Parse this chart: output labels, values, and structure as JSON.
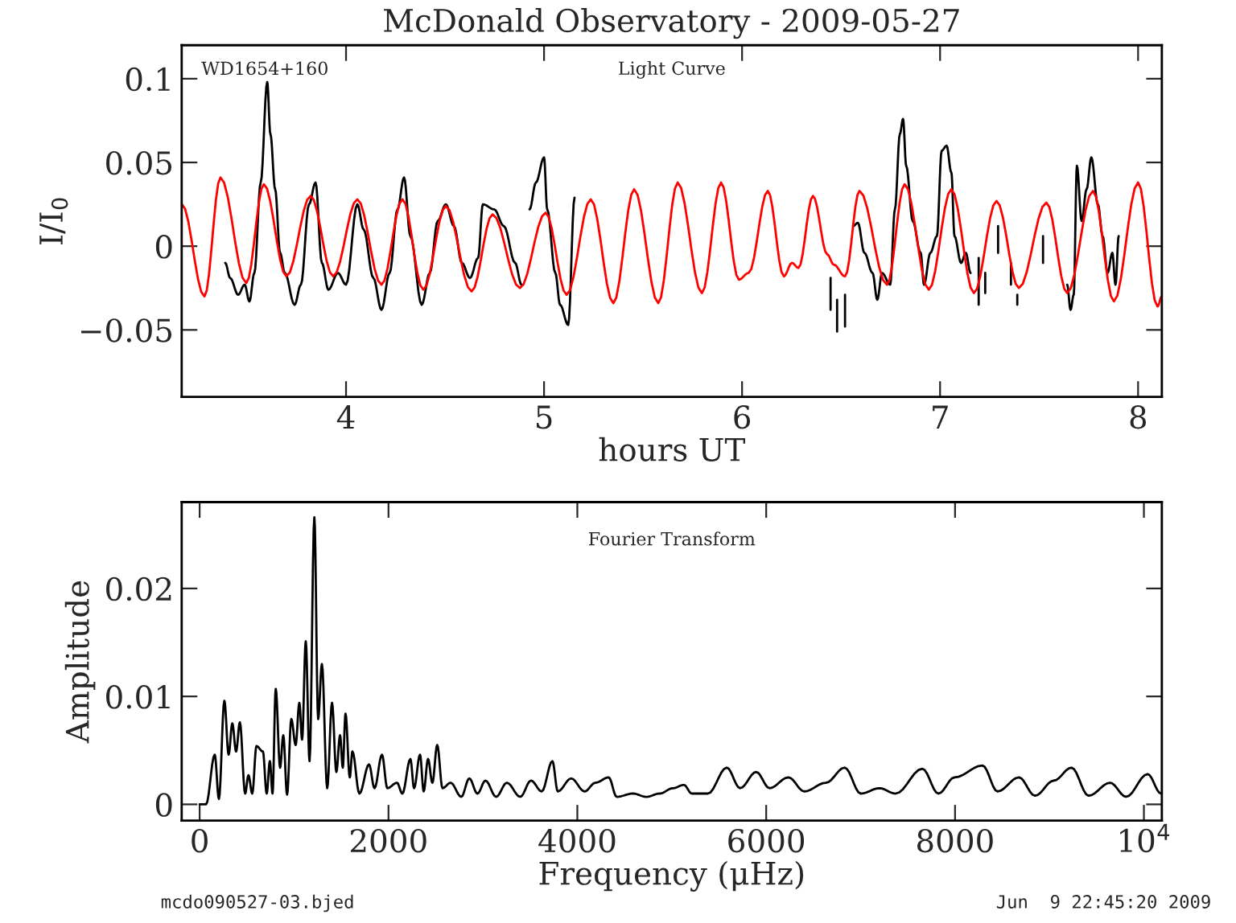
{
  "chart_data": [
    {
      "type": "line",
      "title": "McDonald Observatory - 2009-05-27",
      "xlabel": "hours UT",
      "ylabel": "I/I$_{0}$",
      "annotations": [
        "WD1654+160",
        "Light Curve"
      ],
      "xlim": [
        3.17,
        8.12
      ],
      "ylim": [
        -0.09,
        0.12
      ],
      "xticks": [
        4,
        5,
        6,
        7,
        8
      ],
      "yticks": [
        {
          "value": -0.05,
          "label": "−0.05"
        },
        0,
        0.05,
        0.1
      ],
      "grid": false,
      "legend": false,
      "marker": "none",
      "line_style": "solid",
      "series": [
        {
          "color": "#000000",
          "x": [
            3.39,
            3.415,
            3.455,
            3.488,
            3.512,
            3.537,
            3.569,
            3.602,
            3.618,
            3.642,
            3.667,
            3.691,
            3.74,
            3.772,
            3.813,
            3.846,
            3.878,
            3.911,
            3.959,
            4.0,
            4.057,
            4.089,
            4.138,
            4.179,
            4.22,
            4.26,
            4.293,
            4.325,
            4.382,
            4.423,
            4.463,
            4.504,
            4.545,
            4.585,
            4.626,
            4.667,
            4.691,
            4.748,
            4.797,
            4.854,
            4.886,
            4.9,
            4.927,
            4.959,
            5.0,
            5.016,
            5.057,
            5.081,
            5.122,
            5.154,
            5.3,
            6.447,
            6.447,
            6.46,
            6.48,
            6.48,
            6.5,
            6.52,
            6.52,
            6.54,
            6.561,
            6.585,
            6.618,
            6.659,
            6.683,
            6.707,
            6.748,
            6.772,
            6.797,
            6.813,
            6.829,
            6.862,
            6.902,
            6.919,
            6.951,
            6.984,
            7.008,
            7.033,
            7.057,
            7.073,
            7.106,
            7.13,
            7.154,
            7.17,
            7.195,
            7.195,
            7.21,
            7.228,
            7.228,
            7.26,
            7.293,
            7.293,
            7.32,
            7.358,
            7.358,
            7.375,
            7.39,
            7.39,
            7.45,
            7.52,
            7.52,
            7.6,
            7.642,
            7.659,
            7.675,
            7.691,
            7.715,
            7.74,
            7.764,
            7.797,
            7.821,
            7.846,
            7.87,
            7.886,
            7.902
          ],
          "values": [
            -0.01,
            -0.019,
            -0.029,
            -0.023,
            -0.033,
            -0.016,
            0.038,
            0.098,
            0.067,
            0.034,
            -0.004,
            -0.016,
            -0.035,
            -0.023,
            0.025,
            0.038,
            -0.01,
            -0.026,
            -0.016,
            -0.023,
            0.025,
            0.01,
            -0.019,
            -0.038,
            -0.016,
            0.022,
            0.041,
            0.006,
            -0.035,
            -0.016,
            0.015,
            0.025,
            0.012,
            -0.01,
            -0.019,
            -0.007,
            0.025,
            0.022,
            0.012,
            -0.01,
            -0.023,
            null,
            0.022,
            0.038,
            0.053,
            0.022,
            -0.016,
            -0.035,
            -0.047,
            0.029,
            null,
            -0.019,
            -0.038,
            null,
            -0.032,
            -0.051,
            null,
            -0.029,
            -0.048,
            null,
            0.012,
            0.014,
            -0.004,
            -0.016,
            -0.032,
            -0.016,
            -0.023,
            0.022,
            0.067,
            0.076,
            0.048,
            0.015,
            -0.004,
            -0.023,
            -0.004,
            0.006,
            0.057,
            0.06,
            0.044,
            0.006,
            -0.01,
            -0.004,
            -0.016,
            null,
            -0.007,
            -0.035,
            null,
            -0.016,
            -0.028,
            null,
            0.012,
            -0.004,
            null,
            -0.01,
            -0.023,
            null,
            -0.029,
            -0.035,
            null,
            0.006,
            -0.01,
            null,
            -0.023,
            -0.038,
            -0.029,
            0.048,
            0.015,
            0.034,
            0.053,
            0.025,
            0.006,
            -0.016,
            -0.004,
            -0.023,
            0.006
          ]
        },
        {
          "color": "#ff0000",
          "x": [
            3.171,
            3.285,
            3.366,
            3.496,
            3.585,
            3.699,
            3.821,
            3.935,
            4.057,
            4.179,
            4.285,
            4.39,
            4.504,
            4.634,
            4.74,
            4.878,
            5.008,
            5.114,
            5.236,
            5.35,
            5.455,
            5.577,
            5.675,
            5.797,
            5.894,
            5.984,
            6.033,
            6.13,
            6.211,
            6.252,
            6.285,
            6.358,
            6.431,
            6.463,
            6.52,
            6.593,
            6.732,
            6.821,
            6.943,
            7.057,
            7.171,
            7.285,
            7.398,
            7.537,
            7.642,
            7.772,
            7.878,
            8.0,
            8.098,
            8.12
          ],
          "values": [
            0.025,
            -0.03,
            0.041,
            -0.022,
            0.037,
            -0.018,
            0.03,
            -0.018,
            0.028,
            -0.023,
            0.028,
            -0.026,
            0.024,
            -0.027,
            0.019,
            -0.025,
            0.02,
            -0.029,
            0.028,
            -0.034,
            0.034,
            -0.034,
            0.038,
            -0.028,
            0.038,
            -0.02,
            -0.016,
            0.033,
            -0.018,
            -0.01,
            -0.013,
            0.03,
            -0.005,
            -0.011,
            -0.018,
            0.033,
            -0.023,
            0.037,
            -0.026,
            0.034,
            -0.028,
            0.027,
            -0.025,
            0.026,
            -0.028,
            0.033,
            -0.033,
            0.038,
            -0.036,
            -0.03
          ]
        }
      ]
    },
    {
      "type": "line",
      "xlabel": "Frequency (μHz)",
      "ylabel": "Amplitude",
      "annotations": [
        "Fourier Transform",
        "mcdo090527-03.bjed",
        "Jun  9 22:45:20 2009"
      ],
      "xlim": [
        -190,
        10190
      ],
      "ylim": [
        -0.0015,
        0.028
      ],
      "xticks": [
        0,
        2000,
        4000,
        6000,
        8000,
        {
          "value": 10000,
          "label": "10$^{4}$"
        }
      ],
      "yticks": [
        0,
        0.01,
        0.02
      ],
      "grid": false,
      "legend": false,
      "marker": "none",
      "line_style": "solid",
      "series": [
        {
          "color": "#000000",
          "x": [
            0,
            68,
            160,
            204,
            262,
            307,
            346,
            386,
            426,
            482,
            517,
            557,
            602,
            670,
            710,
            744,
            772,
            806,
            852,
            886,
            926,
            971,
            1017,
            1056,
            1085,
            1124,
            1164,
            1215,
            1255,
            1295,
            1351,
            1402,
            1448,
            1487,
            1516,
            1545,
            1590,
            1618,
            1692,
            1794,
            1852,
            1931,
            1988,
            2090,
            2147,
            2232,
            2271,
            2334,
            2373,
            2419,
            2465,
            2516,
            2572,
            2658,
            2771,
            2856,
            2942,
            3027,
            3140,
            3254,
            3396,
            3509,
            3623,
            3736,
            3793,
            3935,
            4077,
            4191,
            4332,
            4417,
            4588,
            4731,
            4872,
            5014,
            5128,
            5213,
            5383,
            5582,
            5724,
            5894,
            6036,
            6235,
            6405,
            6632,
            6831,
            7002,
            7200,
            7370,
            7654,
            7824,
            7995,
            8291,
            8450,
            8677,
            8847,
            9046,
            9233,
            9415,
            9642,
            9812,
            10039,
            10182
          ],
          "values": [
            0,
            0,
            0.0046,
            0.0005,
            0.0096,
            0.0046,
            0.0075,
            0.0049,
            0.0076,
            0.001,
            0.0027,
            0.001,
            0.0054,
            0.0049,
            0.001,
            0.004,
            0.001,
            0.0107,
            0.0034,
            0.0064,
            0.0009,
            0.0079,
            0.0055,
            0.0094,
            0.006,
            0.0151,
            0.004,
            0.0266,
            0.0079,
            0.013,
            0.0015,
            0.0094,
            0.003,
            0.0064,
            0.0034,
            0.0084,
            0.0025,
            0.0049,
            0.001,
            0.0037,
            0.0015,
            0.0046,
            0.0015,
            0.002,
            0.001,
            0.0042,
            0.0015,
            0.0046,
            0.0012,
            0.0042,
            0.002,
            0.0055,
            0.0015,
            0.002,
            0.0007,
            0.0024,
            0.001,
            0.0022,
            0.0007,
            0.002,
            0.0007,
            0.0022,
            0.0012,
            0.004,
            0.0012,
            0.0024,
            0.0012,
            0.002,
            0.0025,
            0.0007,
            0.001,
            0.0007,
            0.001,
            0.0015,
            0.0018,
            0.001,
            0.001,
            0.0034,
            0.0015,
            0.003,
            0.0015,
            0.0025,
            0.0012,
            0.002,
            0.0034,
            0.001,
            0.0015,
            0.001,
            0.0033,
            0.001,
            0.0025,
            0.0036,
            0.0012,
            0.0025,
            0.0008,
            0.0022,
            0.0034,
            0.0008,
            0.002,
            0.0007,
            0.0028,
            0.001
          ]
        }
      ]
    }
  ]
}
